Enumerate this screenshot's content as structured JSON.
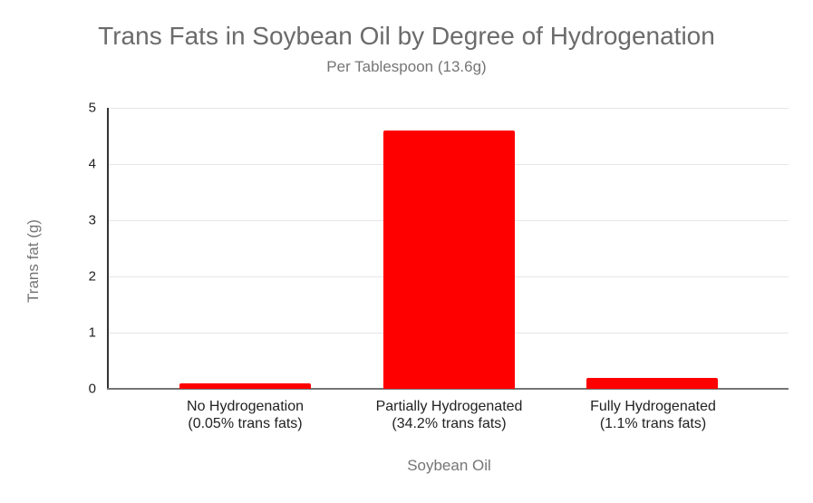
{
  "chart_data": {
    "type": "bar",
    "title": "Trans Fats in Soybean Oil by Degree of Hydrogenation",
    "subtitle": "Per Tablespoon (13.6g)",
    "xlabel": "Soybean Oil",
    "ylabel": "Trans fat (g)",
    "ylim": [
      0,
      5
    ],
    "yticks": [
      5,
      4,
      3,
      2,
      1,
      0
    ],
    "grid": true,
    "legend_position": "none",
    "bar_color": "#ff0000",
    "categories": [
      {
        "line1": "No Hydrogenation",
        "line2": "(0.05% trans fats)"
      },
      {
        "line1": "Partially Hydrogenated",
        "line2": "(34.2% trans fats)"
      },
      {
        "line1": "Fully Hydrogenated",
        "line2": "(1.1% trans fats)"
      }
    ],
    "values": [
      0.1,
      4.6,
      0.2
    ]
  },
  "colors": {
    "bar": "#ff0000",
    "title": "#6b6b6b",
    "subtitle": "#757575",
    "axis_title": "#757575",
    "tick_label": "#222222",
    "gridline": "#e6e6e6",
    "y_axis_line": "#333333",
    "x_baseline": "#757575",
    "background": "#ffffff"
  }
}
